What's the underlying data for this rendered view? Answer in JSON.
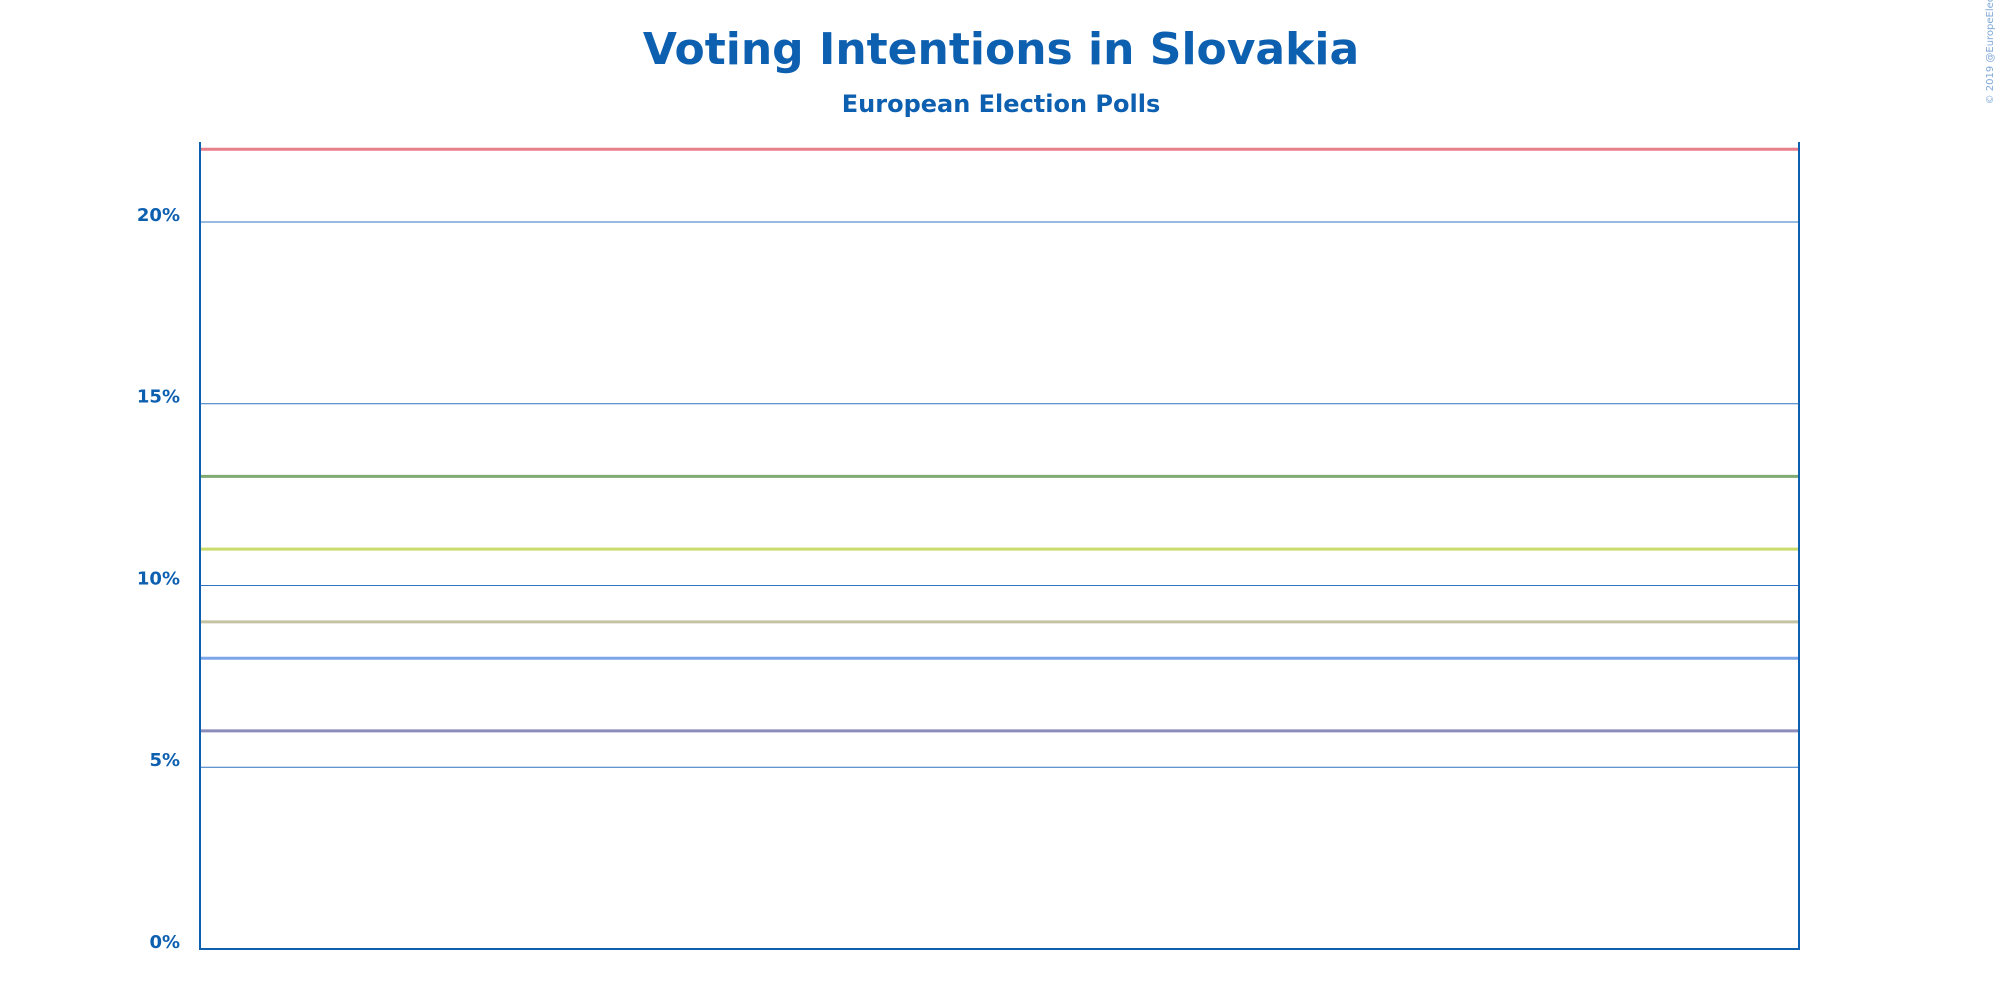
{
  "chart_data": {
    "type": "hline",
    "title": "Voting Intentions in Slovakia",
    "subtitle": "European Election Polls",
    "credit": "© 2019 @EuropeElects",
    "series": [
      {
        "color": "#e8808c",
        "values": [
          22
        ]
      },
      {
        "color": "#7faa72",
        "values": [
          13
        ]
      },
      {
        "color": "#cadc6c",
        "values": [
          11
        ]
      },
      {
        "color": "#c4c2a2",
        "values": [
          9
        ]
      },
      {
        "color": "#7ba7e8",
        "values": [
          8
        ]
      },
      {
        "color": "#8b8cba",
        "values": [
          6
        ]
      }
    ],
    "ylim": [
      0,
      22.2
    ],
    "yticks": [
      {
        "value": 0,
        "label": "0%"
      },
      {
        "value": 5,
        "label": "5%"
      },
      {
        "value": 10,
        "label": "10%"
      },
      {
        "value": 15,
        "label": "15%"
      },
      {
        "value": 20,
        "label": "20%"
      }
    ],
    "grid": true
  }
}
